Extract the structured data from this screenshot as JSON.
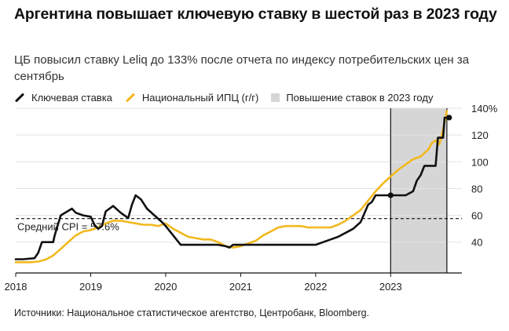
{
  "title": "Аргентина повышает ключевую ставку в шестой раз в 2023 году",
  "subtitle": "ЦБ повысил ставку Leliq до 133% после отчета по индексу потребительских цен за сентябрь",
  "legend": [
    {
      "label": "Ключевая ставка",
      "color": "#111111",
      "kind": "line"
    },
    {
      "label": "Национальный ИПЦ (г/г)",
      "color": "#f2b81e",
      "kind": "line"
    },
    {
      "label": "Повышение ставок в 2023 году",
      "color": "#d6d6d6",
      "kind": "box"
    }
  ],
  "source": "Источники: Национальное статистическое агентство, Центробанк, Bloomberg.",
  "chart_data": {
    "type": "line",
    "x_ticks": [
      2018,
      2019,
      2020,
      2021,
      2022,
      2023
    ],
    "y_ticks": [
      40,
      60,
      80,
      100,
      120,
      140
    ],
    "y_tick_labels": [
      "40",
      "60",
      "80",
      "100",
      "120",
      "140%"
    ],
    "xlim": [
      2018.0,
      2023.95
    ],
    "ylim": [
      17,
      140
    ],
    "grid": "horizontal",
    "shaded_period": {
      "x": [
        2023.0,
        2023.75
      ],
      "label": "Повышение ставок в 2023 году",
      "color": "#d6d6d6"
    },
    "reference_line": {
      "y": 57.6,
      "label": "Средний CPI = 57.6%",
      "style": "dashed"
    },
    "series": [
      {
        "name": "Ключевая ставка",
        "color": "#111111",
        "x": [
          2018.0,
          2018.1,
          2018.25,
          2018.3,
          2018.35,
          2018.5,
          2018.52,
          2018.6,
          2018.75,
          2018.8,
          2018.9,
          2019.0,
          2019.05,
          2019.1,
          2019.15,
          2019.2,
          2019.3,
          2019.4,
          2019.5,
          2019.55,
          2019.6,
          2019.67,
          2019.75,
          2019.85,
          2019.95,
          2020.0,
          2020.1,
          2020.2,
          2020.4,
          2020.6,
          2020.7,
          2020.8,
          2020.85,
          2020.9,
          2021.0,
          2021.5,
          2022.0,
          2022.1,
          2022.2,
          2022.3,
          2022.4,
          2022.5,
          2022.6,
          2022.7,
          2022.75,
          2022.8,
          2023.0,
          2023.1,
          2023.2,
          2023.3,
          2023.35,
          2023.4,
          2023.45,
          2023.6,
          2023.63,
          2023.7,
          2023.72,
          2023.78
        ],
        "y": [
          27.25,
          27.25,
          28,
          32,
          40,
          40,
          45,
          60,
          65,
          62,
          60,
          59,
          53,
          50,
          52,
          63,
          67,
          62,
          58,
          68,
          75,
          72,
          65,
          60,
          55,
          52,
          45,
          38,
          38,
          38,
          38,
          37,
          36,
          38,
          38,
          38,
          38,
          40,
          42,
          44,
          47,
          50,
          55,
          68,
          70,
          75,
          75,
          75,
          75,
          78,
          86,
          90,
          97,
          97,
          118,
          118,
          133,
          133
        ]
      },
      {
        "name": "Национальный ИПЦ (г/г)",
        "color": "#f2b81e",
        "x": [
          2018.0,
          2018.1,
          2018.2,
          2018.3,
          2018.4,
          2018.5,
          2018.6,
          2018.7,
          2018.8,
          2018.9,
          2019.0,
          2019.1,
          2019.2,
          2019.3,
          2019.4,
          2019.5,
          2019.6,
          2019.7,
          2019.8,
          2019.9,
          2020.0,
          2020.1,
          2020.2,
          2020.3,
          2020.4,
          2020.5,
          2020.6,
          2020.7,
          2020.8,
          2020.9,
          2021.0,
          2021.1,
          2021.2,
          2021.3,
          2021.4,
          2021.5,
          2021.6,
          2021.7,
          2021.8,
          2021.9,
          2022.0,
          2022.1,
          2022.2,
          2022.3,
          2022.4,
          2022.5,
          2022.6,
          2022.7,
          2022.8,
          2022.9,
          2023.0,
          2023.1,
          2023.2,
          2023.3,
          2023.4,
          2023.5,
          2023.55,
          2023.6,
          2023.65,
          2023.7,
          2023.75
        ],
        "y": [
          25,
          25,
          25,
          25.5,
          27,
          30,
          35,
          40,
          45,
          48,
          49,
          51,
          54,
          56,
          56,
          55,
          54,
          53,
          53,
          52,
          54,
          50,
          47,
          44,
          43,
          42,
          42,
          40,
          37,
          36,
          37,
          39,
          41,
          45,
          48,
          51,
          52,
          52,
          52,
          51,
          51,
          51,
          51,
          53,
          56,
          60,
          64,
          71,
          78,
          84,
          89,
          94,
          98,
          102,
          104,
          109,
          114,
          116,
          113,
          124,
          138
        ]
      }
    ]
  }
}
